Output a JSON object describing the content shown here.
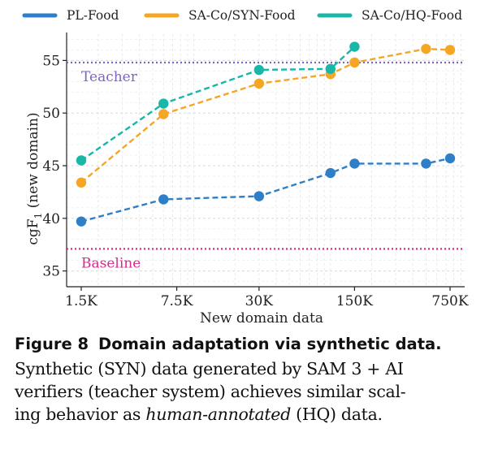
{
  "chart_data": {
    "type": "line",
    "xlabel": "New domain data",
    "ylabel_main": "cgF",
    "ylabel_sub": "1",
    "ylabel_rest": " (new domain)",
    "x_tick_labels": [
      "1.5K",
      "7.5K",
      "30K",
      "150K",
      "750K"
    ],
    "x_scale": "log",
    "x_tick_values": [
      1500,
      7500,
      30000,
      150000,
      750000
    ],
    "yticks": [
      35,
      40,
      45,
      50,
      55
    ],
    "ylim": [
      33.5,
      57.5
    ],
    "grid": true,
    "legend_position": "top",
    "series": [
      {
        "name": "PL-Food",
        "color": "#2f7fc8",
        "x": [
          1500,
          6000,
          30000,
          100000,
          150000,
          500000,
          750000
        ],
        "values": [
          39.7,
          41.8,
          42.1,
          44.3,
          45.2,
          45.2,
          45.7
        ]
      },
      {
        "name": "SA-Co/SYN-Food",
        "color": "#f5a623",
        "x": [
          1500,
          6000,
          30000,
          100000,
          150000,
          500000,
          750000
        ],
        "values": [
          43.4,
          49.9,
          52.8,
          53.7,
          54.8,
          56.1,
          56.0
        ]
      },
      {
        "name": "SA-Co/HQ-Food",
        "color": "#18b7a8",
        "x": [
          1500,
          6000,
          30000,
          100000,
          150000
        ],
        "values": [
          45.5,
          50.9,
          54.1,
          54.2,
          56.3
        ]
      }
    ],
    "reference_lines": [
      {
        "label": "Teacher",
        "value": 54.8,
        "color": "#7e64c0"
      },
      {
        "label": "Baseline",
        "value": 37.1,
        "color": "#d62a8c"
      }
    ]
  },
  "caption": {
    "figure_number": "Figure 8",
    "title": "Domain adaptation via synthetic data.",
    "line1": "Synthetic (SYN) data generated by SAM 3 + AI",
    "line2": "verifiers (teacher system) achieves similar scal-",
    "line3_pre": "ing behavior as ",
    "line3_italic": "human-annotated",
    "line3_post": " (HQ) data."
  }
}
